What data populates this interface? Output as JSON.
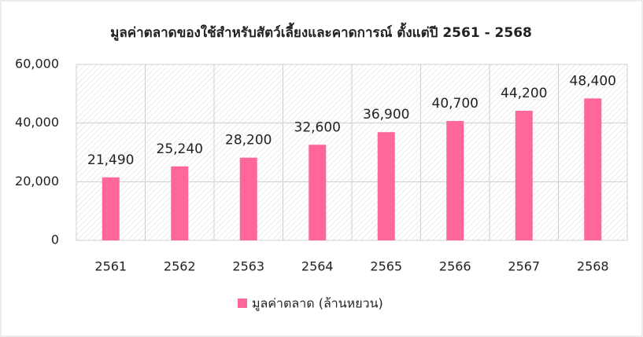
{
  "chart_data": {
    "type": "bar",
    "title": "มูลค่าตลาดของใช้สำหรับสัตว์เลี้ยงและคาดการณ์ ตั้งแต่ปี 2561 - 2568",
    "categories": [
      "2561",
      "2562",
      "2563",
      "2564",
      "2565",
      "2566",
      "2567",
      "2568"
    ],
    "series": [
      {
        "name": "มูลค่าตลาด (ล้านหยวน)",
        "color": "#ff6699",
        "values": [
          21490,
          25240,
          28200,
          32600,
          36900,
          40700,
          44200,
          48400
        ],
        "value_labels": [
          "21,490",
          "25,240",
          "28,200",
          "32,600",
          "36,900",
          "40,700",
          "44,200",
          "48,400"
        ]
      }
    ],
    "ylim": [
      0,
      60000
    ],
    "yticks": [
      0,
      {
        "value": 20000,
        "label": "20,000"
      },
      {
        "value": 40000,
        "label": "40,000"
      },
      {
        "value": 60000,
        "label": "60,000"
      }
    ],
    "grid": true
  }
}
